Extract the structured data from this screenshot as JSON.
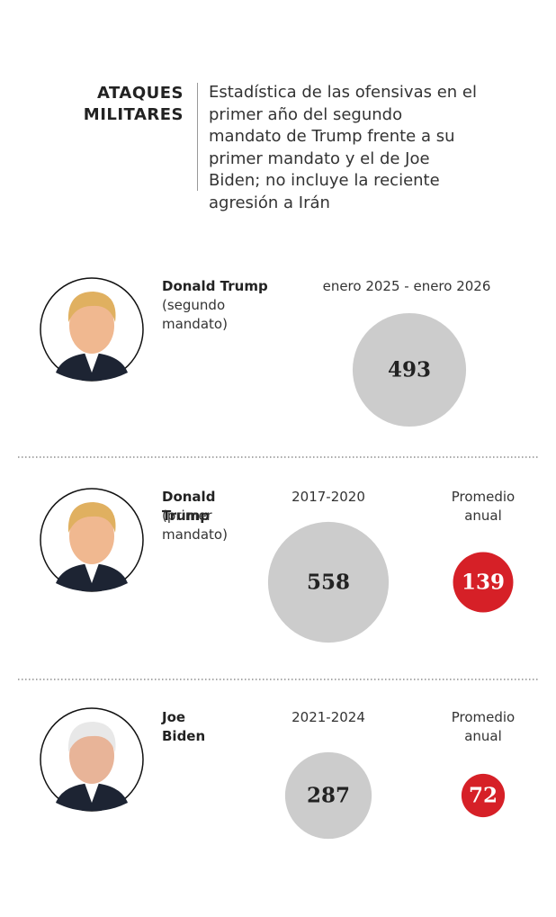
{
  "chart_data": {
    "type": "bubble",
    "title": "ATAQUES MILITARES",
    "subtitle": "Estadística de las ofensivas en el primer año del segundo mandato de Trump frente a su primer mandato y el de Joe Biden; no incluye la reciente agresión a Irán",
    "color": "#cccccc",
    "average_color": "#d62027",
    "rows": [
      {
        "name": "Donald Trump",
        "detail": "(segundo mandato)",
        "period": "enero 2025 - enero 2026",
        "value": 493
      },
      {
        "name": "Donald Trump",
        "detail": "(primer mandato)",
        "period": "2017-2020",
        "value": 558,
        "average_label": "Promedio anual",
        "average": 139
      },
      {
        "name": "Joe Biden",
        "period": "2021-2024",
        "value": 287,
        "average_label": "Promedio anual",
        "average": 72
      }
    ]
  }
}
